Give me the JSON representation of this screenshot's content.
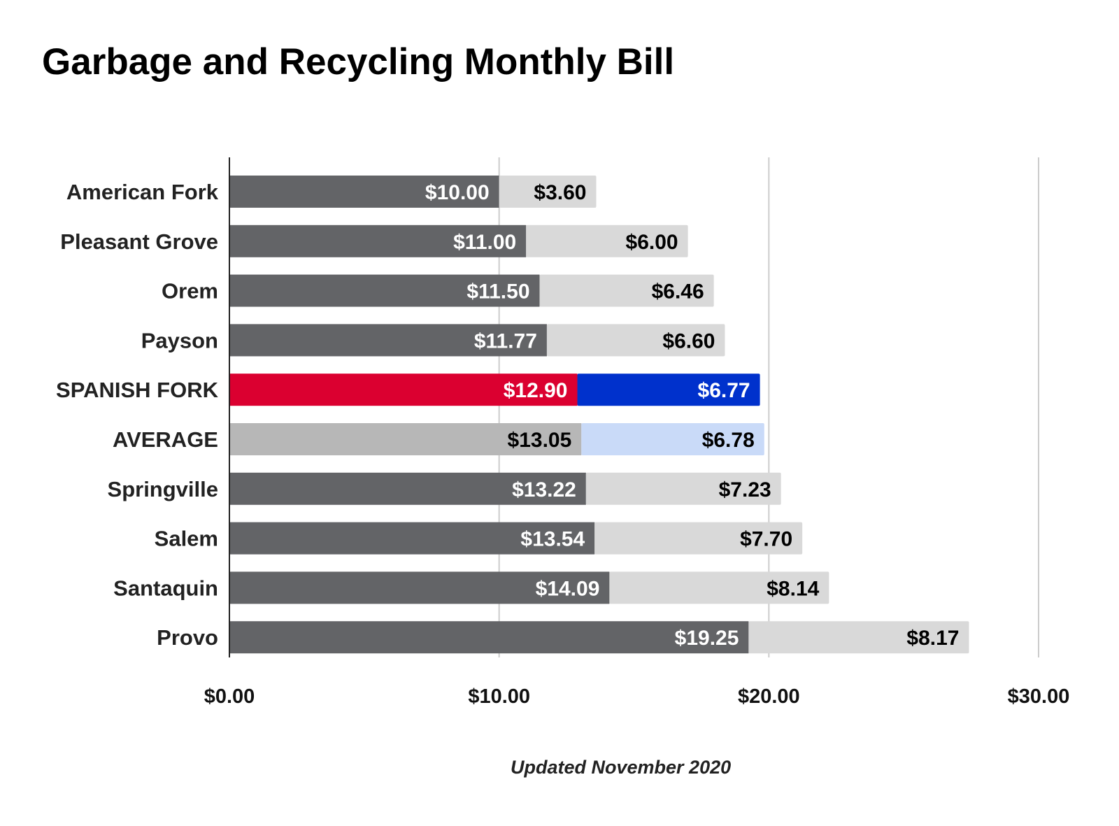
{
  "chart_data": {
    "type": "bar",
    "orientation": "horizontal",
    "stacked": true,
    "title": "Garbage and Recycling Monthly Bill",
    "note": "Updated November 2020",
    "categories": [
      "American Fork",
      "Pleasant Grove",
      "Orem",
      "Payson",
      "SPANISH FORK",
      "AVERAGE",
      "Springville",
      "Salem",
      "Santaquin",
      "Provo"
    ],
    "series": [
      {
        "values": [
          10.0,
          11.0,
          11.5,
          11.77,
          12.9,
          13.05,
          13.22,
          13.54,
          14.09,
          19.25
        ],
        "labels": [
          "$10.00",
          "$11.00",
          "$11.50",
          "$11.77",
          "$12.90",
          "$13.05",
          "$13.22",
          "$13.54",
          "$14.09",
          "$19.25"
        ]
      },
      {
        "values": [
          3.6,
          6.0,
          6.46,
          6.6,
          6.77,
          6.78,
          7.23,
          7.7,
          8.14,
          8.17
        ],
        "labels": [
          "$3.60",
          "$6.00",
          "$6.46",
          "$6.60",
          "$6.77",
          "$6.78",
          "$7.23",
          "$7.70",
          "$8.14",
          "$8.17"
        ]
      }
    ],
    "colors": {
      "segment1": "#636467",
      "segment2": "#d9d9d9",
      "highlight_segment1": "#db0030",
      "highlight_segment2": "#0031cc",
      "average_segment1": "#b7b7b7",
      "average_segment2": "#c9daf8",
      "gridline": "#cccccc",
      "axis": "#222222"
    },
    "highlight_category": "SPANISH FORK",
    "average_category": "AVERAGE",
    "xlim": [
      0,
      30
    ],
    "xticks": [
      0,
      10,
      20,
      30
    ],
    "xtick_labels": [
      "$0.00",
      "$10.00",
      "$20.00",
      "$30.00"
    ],
    "grid": true,
    "legend": "none"
  }
}
